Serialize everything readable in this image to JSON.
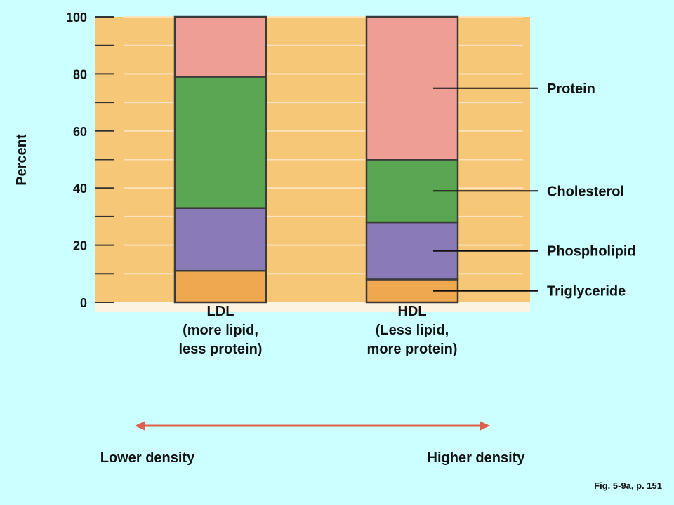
{
  "chart_data": {
    "type": "bar",
    "stacked": true,
    "ylabel": "Percent",
    "ylim": [
      0,
      100
    ],
    "yticks": [
      "0",
      "20",
      "40",
      "60",
      "80",
      "100"
    ],
    "categories": [
      {
        "name": "LDL",
        "description": [
          "(more lipid,",
          "less protein)"
        ]
      },
      {
        "name": "HDL",
        "description": [
          "(Less lipid,",
          "more protein)"
        ]
      }
    ],
    "series": [
      {
        "name": "Triglyceride",
        "color": "#f0a850",
        "values": [
          11,
          8
        ]
      },
      {
        "name": "Phospholipid",
        "color": "#8a7bb8",
        "values": [
          22,
          20
        ]
      },
      {
        "name": "Cholesterol",
        "color": "#5ba653",
        "values": [
          46,
          22
        ]
      },
      {
        "name": "Protein",
        "color": "#ee9e95",
        "values": [
          21,
          50
        ]
      }
    ],
    "plot_background": "#f7c778",
    "gridlines": true
  },
  "density_axis": {
    "left_label": "Lower density",
    "right_label": "Higher density",
    "arrow_color": "#e06050"
  },
  "caption": "Fig. 5-9a, p. 151"
}
